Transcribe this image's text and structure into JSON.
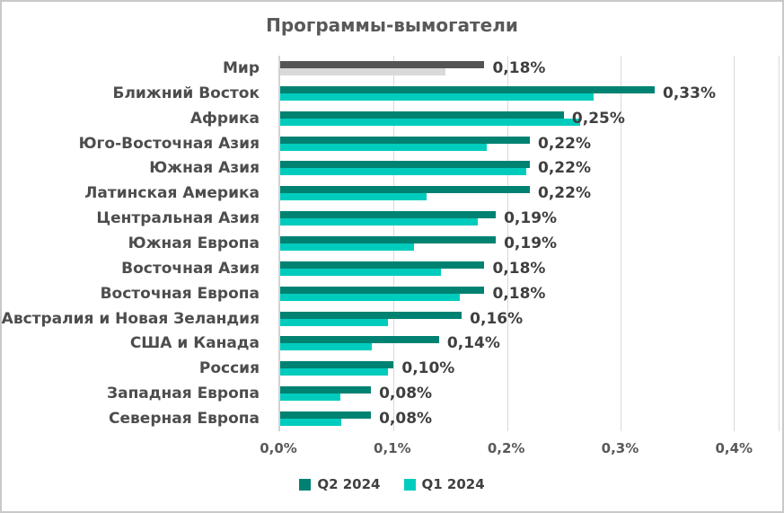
{
  "title": "Программы-вымогатели",
  "colors": {
    "q2": "#008272",
    "q1": "#00CCBE",
    "world_q2": "#545454",
    "world_q1": "#D9D9D9",
    "gridline": "#D9D9D9",
    "axis_line": "#D2D2D2",
    "value_text": "#3F3F3F",
    "category_text": "#4D4D4D",
    "title_text": "#595959",
    "border": "#C9C9C9"
  },
  "legend": {
    "items": [
      {
        "label": "Q2 2024"
      },
      {
        "label": "Q1 2024"
      }
    ]
  },
  "x_axis": {
    "ticks": [
      {
        "label": "0,0%",
        "value": 0
      },
      {
        "label": "0,1%",
        "value": 0.1
      },
      {
        "label": "0,2%",
        "value": 0.2
      },
      {
        "label": "0,3%",
        "value": 0.3
      },
      {
        "label": "0,4%",
        "value": 0.4
      }
    ],
    "max": 0.44
  },
  "chart_data": {
    "type": "bar",
    "orientation": "horizontal",
    "title": "Программы-вымогатели",
    "xlabel": "",
    "ylabel": "",
    "xlim": [
      0,
      0.44
    ],
    "grid": true,
    "legend_position": "bottom",
    "highlight_index": 0,
    "highlight_note": "Row 'Мир' (World) is drawn in gray instead of teal",
    "categories": [
      "Мир",
      "Ближний Восток",
      "Африка",
      "Юго-Восточная Азия",
      "Южная Азия",
      "Латинская Америка",
      "Центральная Азия",
      "Южная Европа",
      "Восточная Азия",
      "Восточная Европа",
      "Австралия и Новая Зеландия",
      "США и Канада",
      "Россия",
      "Западная Европа",
      "Северная Европа"
    ],
    "series": [
      {
        "name": "Q2 2024",
        "values": [
          0.18,
          0.33,
          0.25,
          0.22,
          0.22,
          0.22,
          0.19,
          0.19,
          0.18,
          0.18,
          0.16,
          0.14,
          0.1,
          0.08,
          0.08
        ],
        "labels": [
          "0,18%",
          "0,33%",
          "0,25%",
          "0,22%",
          "0,22%",
          "0,22%",
          "0,19%",
          "0,19%",
          "0,18%",
          "0,18%",
          "0,16%",
          "0,14%",
          "0,10%",
          "0,08%",
          "0,08%"
        ]
      },
      {
        "name": "Q1 2024",
        "values": [
          0.146,
          0.276,
          0.264,
          0.182,
          0.217,
          0.129,
          0.174,
          0.118,
          0.142,
          0.158,
          0.095,
          0.081,
          0.095,
          0.053,
          0.054
        ],
        "labels_shown": false
      }
    ]
  }
}
